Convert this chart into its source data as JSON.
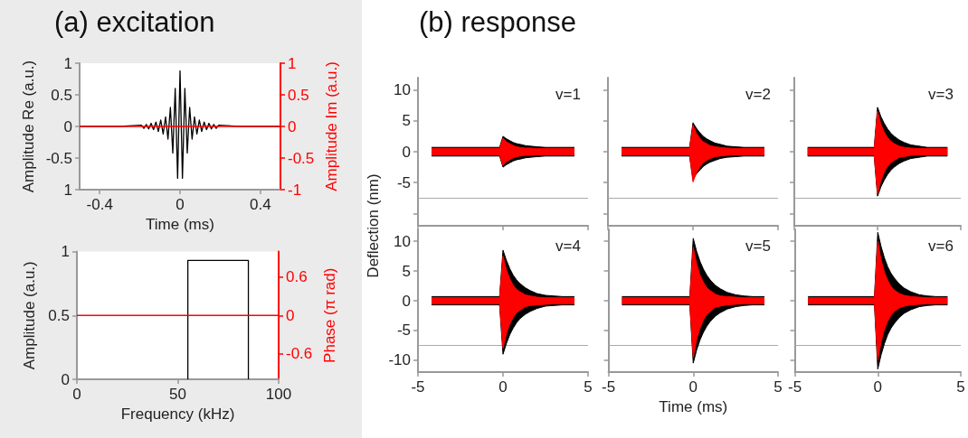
{
  "chart_data": [
    {
      "type": "line",
      "title": "(a) excitation",
      "xlabel": "Time (ms)",
      "ylabel": "Amplitude Re (a.u.)",
      "y2label": "Amplitude Im (a.u.)",
      "xlim": [
        -0.5,
        0.5
      ],
      "xticks": [
        -0.4,
        0,
        0.4
      ],
      "ylim": [
        -1,
        1
      ],
      "yticks": [
        {
          "value": -1,
          "label": "1"
        },
        -0.5,
        0,
        0.5,
        1
      ],
      "y2lim": [
        -1,
        1
      ],
      "y2ticks": [
        -1,
        -0.5,
        0,
        0.5,
        1
      ],
      "series": [
        {
          "color": "#000000",
          "x": [
            -0.5,
            -0.3,
            -0.192,
            -0.18,
            -0.168,
            -0.156,
            -0.144,
            -0.132,
            -0.12,
            -0.108,
            -0.096,
            -0.084,
            -0.072,
            -0.06,
            -0.048,
            -0.036,
            -0.024,
            -0.012,
            0,
            0.012,
            0.024,
            0.036,
            0.048,
            0.06,
            0.072,
            0.084,
            0.096,
            0.108,
            0.12,
            0.132,
            0.144,
            0.156,
            0.168,
            0.18,
            0.192,
            0.3,
            0.5
          ],
          "values": [
            0,
            0,
            0.02,
            -0.03,
            0.03,
            -0.04,
            0.05,
            -0.05,
            0.07,
            -0.08,
            0.1,
            -0.12,
            0.15,
            -0.2,
            0.3,
            -0.42,
            0.6,
            -0.82,
            0.88,
            -0.82,
            0.6,
            -0.42,
            0.3,
            -0.2,
            0.15,
            -0.12,
            0.1,
            -0.08,
            0.07,
            -0.05,
            0.05,
            -0.04,
            0.03,
            -0.03,
            0.02,
            0,
            0
          ]
        },
        {
          "color": "#ff0000",
          "axis": "y2",
          "x": [
            -0.5,
            0.5
          ],
          "values": [
            0,
            0
          ]
        }
      ]
    },
    {
      "type": "line",
      "xlabel": "Frequency (kHz)",
      "ylabel": "Amplitude (a.u.)",
      "y2label": "Phase (π rad)",
      "xlim": [
        0,
        100
      ],
      "xticks": [
        0,
        50,
        100
      ],
      "ylim": [
        0,
        1
      ],
      "yticks": [
        0,
        0.5,
        1
      ],
      "y2lim": [
        -1,
        1
      ],
      "y2ticks": [
        -0.6,
        0,
        0.6
      ],
      "series": [
        {
          "color": "#000000",
          "x": [
            55,
            55,
            85,
            85
          ],
          "values": [
            0,
            0.93,
            0.93,
            0
          ]
        },
        {
          "color": "#ff0000",
          "axis": "y2",
          "x": [
            0,
            100
          ],
          "values": [
            0,
            0
          ]
        }
      ]
    },
    {
      "type": "area",
      "title": "(b) response",
      "tick_labels": "y",
      "annotations": [
        "v=1"
      ],
      "x": [
        -4.2,
        -0.2,
        0,
        0.2,
        0.4,
        0.6,
        0.8,
        1,
        1.3,
        1.6,
        2,
        2.5,
        3,
        3.5,
        4.2
      ],
      "xlim": [
        -5,
        5
      ],
      "xticks": [
        -5,
        0,
        5
      ],
      "ylim": [
        -12,
        12
      ],
      "yticks": [
        {
          "value": -10,
          "label": null
        },
        -5,
        0,
        5,
        10
      ],
      "ref_lines": [
        {
          "axis": "y",
          "value": -7.5,
          "color": "#aaaaaa"
        }
      ],
      "series": [
        {
          "color": "#000000",
          "values": [
            0.7,
            0.7,
            2.5,
            2.1,
            1.8,
            1.5,
            1.3,
            1.2,
            1.0,
            0.9,
            0.8,
            0.7,
            0.7,
            0.7,
            0.7
          ]
        },
        {
          "color": "#000000",
          "values": [
            -0.7,
            -0.7,
            -2.5,
            -2.1,
            -1.8,
            -1.5,
            -1.3,
            -1.2,
            -1.0,
            -0.9,
            -0.8,
            -0.7,
            -0.7,
            -0.7,
            -0.7
          ]
        },
        {
          "color": "#ff0000",
          "values": [
            0.5,
            0.5,
            2.2,
            1.6,
            1.3,
            1.0,
            0.8,
            0.7,
            0.6,
            0.6,
            0.5,
            0.5,
            0.5,
            0.5,
            0.5
          ]
        },
        {
          "color": "#ff0000",
          "values": [
            -0.5,
            -0.5,
            -2.2,
            -1.6,
            -1.3,
            -1.0,
            -0.8,
            -0.7,
            -0.6,
            -0.6,
            -0.5,
            -0.5,
            -0.5,
            -0.5,
            -0.5
          ]
        }
      ]
    },
    {
      "type": "area",
      "tick_labels": false,
      "annotations": [
        "v=2"
      ],
      "x": [
        -4.2,
        -0.2,
        0,
        0.2,
        0.4,
        0.6,
        0.8,
        1,
        1.3,
        1.6,
        2,
        2.5,
        3,
        3.5,
        4.2
      ],
      "xlim": [
        -5,
        5
      ],
      "xticks": [
        -5,
        0,
        5
      ],
      "ylim": [
        -12,
        12
      ],
      "yticks": [
        -10,
        -5,
        0,
        5,
        10
      ],
      "ref_lines": [
        {
          "axis": "y",
          "value": -7.5,
          "color": "#aaaaaa"
        }
      ],
      "series": [
        {
          "color": "#000000",
          "values": [
            0.7,
            0.7,
            4.7,
            3.8,
            3.1,
            2.5,
            2.1,
            1.8,
            1.4,
            1.2,
            0.9,
            0.8,
            0.7,
            0.7,
            0.7
          ]
        },
        {
          "color": "#000000",
          "values": [
            -0.7,
            -0.7,
            -4.5,
            -3.6,
            -3.0,
            -2.4,
            -2.0,
            -1.7,
            -1.4,
            -1.1,
            -0.9,
            -0.8,
            -0.7,
            -0.7,
            -0.7
          ]
        },
        {
          "color": "#ff0000",
          "values": [
            0.5,
            0.5,
            4.3,
            3.0,
            2.2,
            1.6,
            1.3,
            1.0,
            0.8,
            0.7,
            0.6,
            0.5,
            0.5,
            0.5,
            0.5
          ]
        },
        {
          "color": "#ff0000",
          "values": [
            -0.5,
            -0.5,
            -4.9,
            -3.4,
            -2.5,
            -1.8,
            -1.4,
            -1.1,
            -0.8,
            -0.7,
            -0.6,
            -0.5,
            -0.5,
            -0.5,
            -0.5
          ]
        }
      ]
    },
    {
      "type": "area",
      "tick_labels": false,
      "annotations": [
        "v=3"
      ],
      "x": [
        -4.2,
        -0.2,
        0,
        0.2,
        0.4,
        0.6,
        0.8,
        1,
        1.3,
        1.6,
        2,
        2.5,
        3,
        3.5,
        4.2
      ],
      "xlim": [
        -5,
        5
      ],
      "xticks": [
        -5,
        0,
        5
      ],
      "ylim": [
        -12,
        12
      ],
      "yticks": [
        -10,
        -5,
        0,
        5,
        10
      ],
      "ref_lines": [
        {
          "axis": "y",
          "value": -7.5,
          "color": "#aaaaaa"
        }
      ],
      "series": [
        {
          "color": "#000000",
          "values": [
            0.7,
            0.7,
            7.2,
            5.7,
            4.6,
            3.7,
            3.0,
            2.5,
            1.9,
            1.5,
            1.1,
            0.9,
            0.7,
            0.7,
            0.7
          ]
        },
        {
          "color": "#000000",
          "values": [
            -0.7,
            -0.7,
            -7.2,
            -5.7,
            -4.6,
            -3.7,
            -3.0,
            -2.5,
            -1.9,
            -1.5,
            -1.1,
            -0.9,
            -0.7,
            -0.7,
            -0.7
          ]
        },
        {
          "color": "#ff0000",
          "values": [
            0.5,
            0.5,
            6.5,
            4.5,
            3.2,
            2.3,
            1.7,
            1.3,
            0.9,
            0.7,
            0.6,
            0.5,
            0.5,
            0.5,
            0.5
          ]
        },
        {
          "color": "#ff0000",
          "values": [
            -0.5,
            -0.5,
            -6.8,
            -4.7,
            -3.3,
            -2.4,
            -1.8,
            -1.4,
            -0.9,
            -0.8,
            -0.6,
            -0.5,
            -0.5,
            -0.5,
            -0.5
          ]
        }
      ]
    },
    {
      "type": "area",
      "ylabel": "Deflection (nm)",
      "annotations": [
        "v=4"
      ],
      "x": [
        -4.2,
        -0.2,
        0,
        0.2,
        0.4,
        0.6,
        0.8,
        1,
        1.3,
        1.6,
        2,
        2.5,
        3,
        3.5,
        4.2
      ],
      "xlim": [
        -5,
        5
      ],
      "xticks": [
        -5,
        0,
        5
      ],
      "ylim": [
        -12,
        12
      ],
      "yticks": [
        -10,
        -5,
        0,
        5,
        10
      ],
      "ref_lines": [
        {
          "axis": "y",
          "value": -7.5,
          "color": "#aaaaaa"
        }
      ],
      "series": [
        {
          "color": "#000000",
          "values": [
            0.7,
            0.7,
            8.5,
            6.8,
            5.4,
            4.3,
            3.5,
            2.9,
            2.2,
            1.7,
            1.2,
            0.9,
            0.8,
            0.7,
            0.7
          ]
        },
        {
          "color": "#000000",
          "values": [
            -0.7,
            -0.7,
            -9.0,
            -7.2,
            -5.7,
            -4.6,
            -3.7,
            -3.0,
            -2.3,
            -1.8,
            -1.3,
            -0.9,
            -0.8,
            -0.7,
            -0.7
          ]
        },
        {
          "color": "#ff0000",
          "values": [
            0.5,
            0.5,
            7.5,
            5.2,
            3.7,
            2.6,
            1.9,
            1.5,
            1.0,
            0.8,
            0.6,
            0.5,
            0.5,
            0.5,
            0.5
          ]
        },
        {
          "color": "#ff0000",
          "values": [
            -0.5,
            -0.5,
            -8.0,
            -5.5,
            -3.9,
            -2.8,
            -2.0,
            -1.6,
            -1.0,
            -0.8,
            -0.7,
            -0.6,
            -0.5,
            -0.5,
            -0.5
          ]
        }
      ]
    },
    {
      "type": "area",
      "xlabel": "Time (ms)",
      "tick_labels": "x",
      "annotations": [
        "v=5"
      ],
      "x": [
        -4.2,
        -0.2,
        0,
        0.2,
        0.4,
        0.6,
        0.8,
        1,
        1.3,
        1.6,
        2,
        2.5,
        3,
        3.5,
        4.2
      ],
      "xlim": [
        -5,
        5
      ],
      "xticks": [
        -5,
        0,
        5
      ],
      "ylim": [
        -12,
        12
      ],
      "yticks": [
        -10,
        -5,
        0,
        5,
        10
      ],
      "ref_lines": [
        {
          "axis": "y",
          "value": -7.5,
          "color": "#aaaaaa"
        }
      ],
      "series": [
        {
          "color": "#000000",
          "values": [
            0.7,
            0.7,
            10.5,
            8.3,
            6.6,
            5.3,
            4.3,
            3.5,
            2.6,
            2.0,
            1.4,
            1.0,
            0.8,
            0.7,
            0.7
          ]
        },
        {
          "color": "#000000",
          "values": [
            -0.7,
            -0.7,
            -10.5,
            -8.3,
            -6.6,
            -5.3,
            -4.3,
            -3.5,
            -2.6,
            -2.0,
            -1.4,
            -1.0,
            -0.8,
            -0.7,
            -0.7
          ]
        },
        {
          "color": "#ff0000",
          "values": [
            0.5,
            0.5,
            9.0,
            6.2,
            4.3,
            3.1,
            2.2,
            1.7,
            1.1,
            0.8,
            0.7,
            0.6,
            0.5,
            0.5,
            0.5
          ]
        },
        {
          "color": "#ff0000",
          "values": [
            -0.5,
            -0.5,
            -9.5,
            -6.5,
            -4.6,
            -3.2,
            -2.3,
            -1.8,
            -1.1,
            -0.9,
            -0.7,
            -0.6,
            -0.5,
            -0.5,
            -0.5
          ]
        }
      ]
    },
    {
      "type": "area",
      "tick_labels": "x",
      "annotations": [
        "v=6"
      ],
      "x": [
        -4.2,
        -0.2,
        0,
        0.2,
        0.4,
        0.6,
        0.8,
        1,
        1.3,
        1.6,
        2,
        2.5,
        3,
        3.5,
        4.2
      ],
      "xlim": [
        -5,
        5
      ],
      "xticks": [
        -5,
        0,
        5
      ],
      "ylim": [
        -12,
        12
      ],
      "yticks": [
        -10,
        -5,
        0,
        5,
        10
      ],
      "ref_lines": [
        {
          "axis": "y",
          "value": -7.5,
          "color": "#aaaaaa"
        }
      ],
      "series": [
        {
          "color": "#000000",
          "values": [
            0.7,
            0.7,
            11.5,
            9.1,
            7.2,
            5.7,
            4.6,
            3.8,
            2.8,
            2.1,
            1.5,
            1.0,
            0.8,
            0.7,
            0.7
          ]
        },
        {
          "color": "#000000",
          "values": [
            -0.7,
            -0.7,
            -11.5,
            -9.1,
            -7.2,
            -5.7,
            -4.6,
            -3.8,
            -2.8,
            -2.1,
            -1.5,
            -1.0,
            -0.8,
            -0.7,
            -0.7
          ]
        },
        {
          "color": "#ff0000",
          "values": [
            0.5,
            0.5,
            10.0,
            6.9,
            4.8,
            3.4,
            2.4,
            1.8,
            1.2,
            0.9,
            0.7,
            0.6,
            0.5,
            0.5,
            0.5
          ]
        },
        {
          "color": "#ff0000",
          "values": [
            -0.5,
            -0.5,
            -10.0,
            -6.9,
            -4.8,
            -3.4,
            -2.4,
            -1.8,
            -1.2,
            -0.9,
            -0.7,
            -0.6,
            -0.5,
            -0.5,
            -0.5
          ]
        }
      ]
    }
  ]
}
